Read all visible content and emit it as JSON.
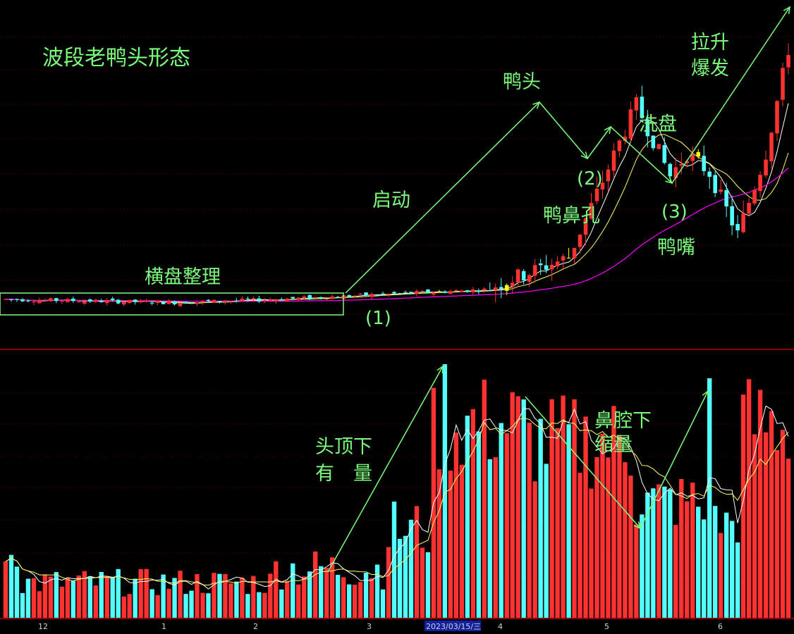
{
  "chart_data": {
    "type": "candlestick+volume",
    "title": "波段老鸭头形态",
    "x_axis_labels": [
      "12",
      "1",
      "2",
      "3",
      "2023/03/15/三",
      "4",
      "5",
      "6"
    ],
    "annotations": {
      "sideways": "横盘整理",
      "launch": "启动",
      "duck_head": "鸭头",
      "nostril": "鸭鼻孔",
      "washout": "洗盘",
      "beak": "鸭嘴",
      "breakout_l1": "拉升",
      "breakout_l2": "爆发",
      "point_1": "(1)",
      "point_2": "(2)",
      "point_3": "(3)",
      "vol_top_l1": "头顶下",
      "vol_top_l2": "有　量",
      "vol_shrink_l1": "鼻腔下",
      "vol_shrink_l2": "缩量"
    },
    "price_keypoints": {
      "start": 100,
      "base_end": 103,
      "head": 160,
      "nostril": 132,
      "pullback": 145,
      "beak_low": 120,
      "end": 185
    },
    "bar_count": 140,
    "colors": {
      "up": "#ff3232",
      "down": "#54ffff",
      "highlight": "#ffff00",
      "ma_short": "#ffffff",
      "ma_mid": "#ffff66",
      "ma_long": "#ff00ff",
      "annotation": "#7CFC7C",
      "divider": "#b00000",
      "grid": "#3a0000"
    }
  }
}
